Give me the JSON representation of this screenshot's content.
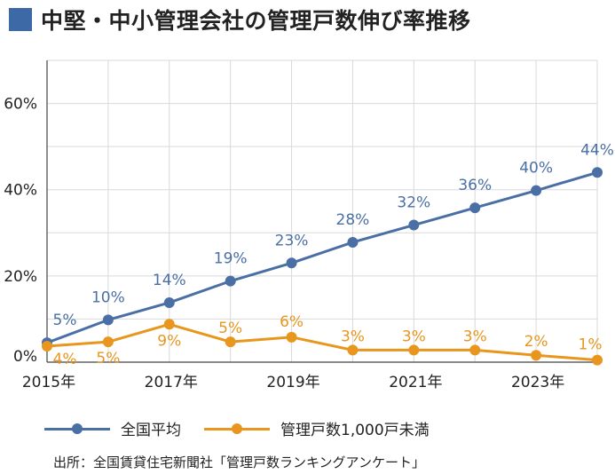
{
  "title": "中堅・中小管理会社の管理戸数伸び率推移",
  "source": "出所：全国賃貸住宅新聞社「管理戸数ランキングアンケート」",
  "colors": {
    "accent": "#3d6aa6",
    "series_blue": "#4a6fa5",
    "series_orange": "#e8961d",
    "grid": "#d9d9d9"
  },
  "chart_data": {
    "type": "line",
    "x": [
      2015,
      2016,
      2017,
      2018,
      2019,
      2020,
      2021,
      2022,
      2023,
      2024
    ],
    "x_tick_labels": [
      "2015年",
      "2017年",
      "2019年",
      "2021年",
      "2023年"
    ],
    "x_tick_values": [
      2015,
      2017,
      2019,
      2021,
      2023
    ],
    "y_tick_labels": [
      "0%",
      "20%",
      "40%",
      "60%"
    ],
    "y_tick_values": [
      0,
      20,
      40,
      60
    ],
    "ylim": [
      0,
      70
    ],
    "grid": true,
    "legend_position": "bottom",
    "series": [
      {
        "name": "全国平均",
        "values": [
          5,
          10,
          14,
          19,
          23,
          28,
          32,
          36,
          40,
          44
        ],
        "labels": [
          "5%",
          "10%",
          "14%",
          "19%",
          "23%",
          "28%",
          "32%",
          "36%",
          "40%",
          "44%"
        ],
        "plotted": [
          4.5,
          9.8,
          13.8,
          18.8,
          23,
          27.8,
          31.8,
          35.8,
          39.8,
          44
        ],
        "color": "#4a6fa5"
      },
      {
        "name": "管理戸数1,000戸未満",
        "values": [
          4,
          5,
          9,
          5,
          6,
          3,
          3,
          3,
          2,
          1
        ],
        "labels": [
          "4%",
          "5%",
          "9%",
          "5%",
          "6%",
          "3%",
          "3%",
          "3%",
          "2%",
          "1%"
        ],
        "plotted": [
          3.7,
          4.7,
          8.8,
          4.7,
          5.8,
          2.8,
          2.8,
          2.8,
          1.6,
          0.5
        ],
        "color": "#e8961d"
      }
    ]
  }
}
